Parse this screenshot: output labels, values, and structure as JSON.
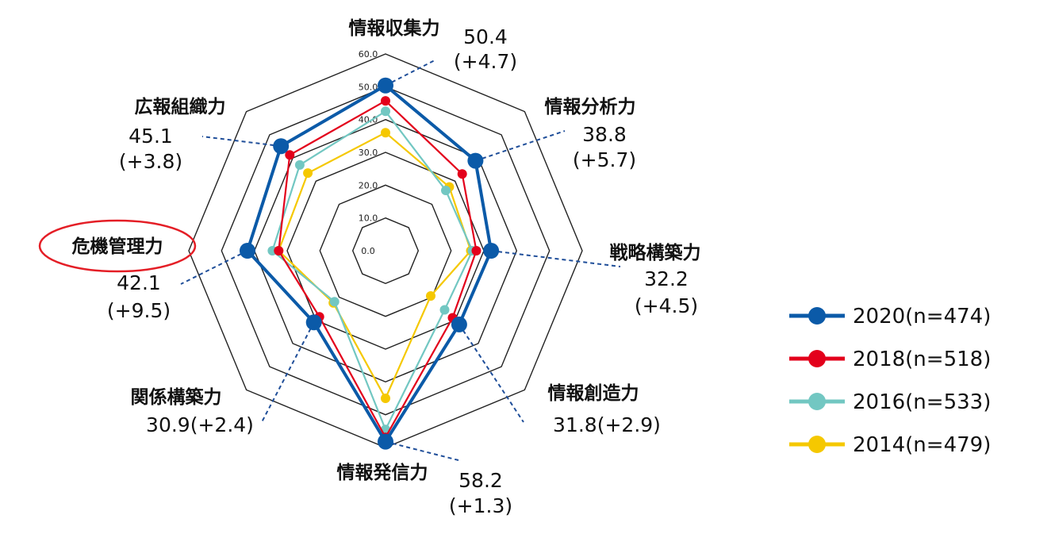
{
  "chart_data": {
    "type": "radar",
    "axes": [
      "情報収集力",
      "情報分析力",
      "戦略構築力",
      "情報創造力",
      "情報発信力",
      "関係構築力",
      "危機管理力",
      "広報組織力"
    ],
    "rlim": [
      0,
      60
    ],
    "ticks": [
      "0.0",
      "10.0",
      "20.0",
      "30.0",
      "40.0",
      "50.0",
      "60.0"
    ],
    "highlighted_axis": "危機管理力",
    "highlight_color": "#e41e26",
    "annotations": [
      {
        "axis": "情報収集力",
        "value": "50.4",
        "diff": "(+4.7)"
      },
      {
        "axis": "情報分析力",
        "value": "38.8",
        "diff": "(+5.7)"
      },
      {
        "axis": "戦略構築力",
        "value": "32.2",
        "diff": "(+4.5)"
      },
      {
        "axis": "情報創造力",
        "value": "31.8",
        "diff": "(+2.9)"
      },
      {
        "axis": "情報発信力",
        "value": "58.2",
        "diff": "(+1.3)"
      },
      {
        "axis": "関係構築力",
        "value": "30.9",
        "diff": "(+2.4)"
      },
      {
        "axis": "危機管理力",
        "value": "42.1",
        "diff": "(+9.5)"
      },
      {
        "axis": "広報組織力",
        "value": "45.1",
        "diff": "(+3.8)"
      }
    ],
    "series": [
      {
        "name": "2014(n=479)",
        "color": "#f5c800",
        "values": [
          36.0,
          27.5,
          26.0,
          19.5,
          45.0,
          22.5,
          32.6,
          33.5
        ]
      },
      {
        "name": "2016(n=533)",
        "color": "#72c7c2",
        "values": [
          42.5,
          26.0,
          26.5,
          25.5,
          54.5,
          22.0,
          34.5,
          37.0
        ]
      },
      {
        "name": "2018(n=518)",
        "color": "#e3001b",
        "values": [
          45.7,
          33.1,
          27.7,
          28.9,
          56.9,
          28.5,
          32.6,
          41.3
        ]
      },
      {
        "name": "2020(n=474)",
        "color": "#0b5aa8",
        "values": [
          50.4,
          38.8,
          32.2,
          31.8,
          58.2,
          30.9,
          42.1,
          45.1
        ]
      }
    ],
    "legend_order": [
      "2020(n=474)",
      "2018(n=518)",
      "2016(n=533)",
      "2014(n=479)"
    ],
    "legend_position": "right",
    "grid": true
  }
}
